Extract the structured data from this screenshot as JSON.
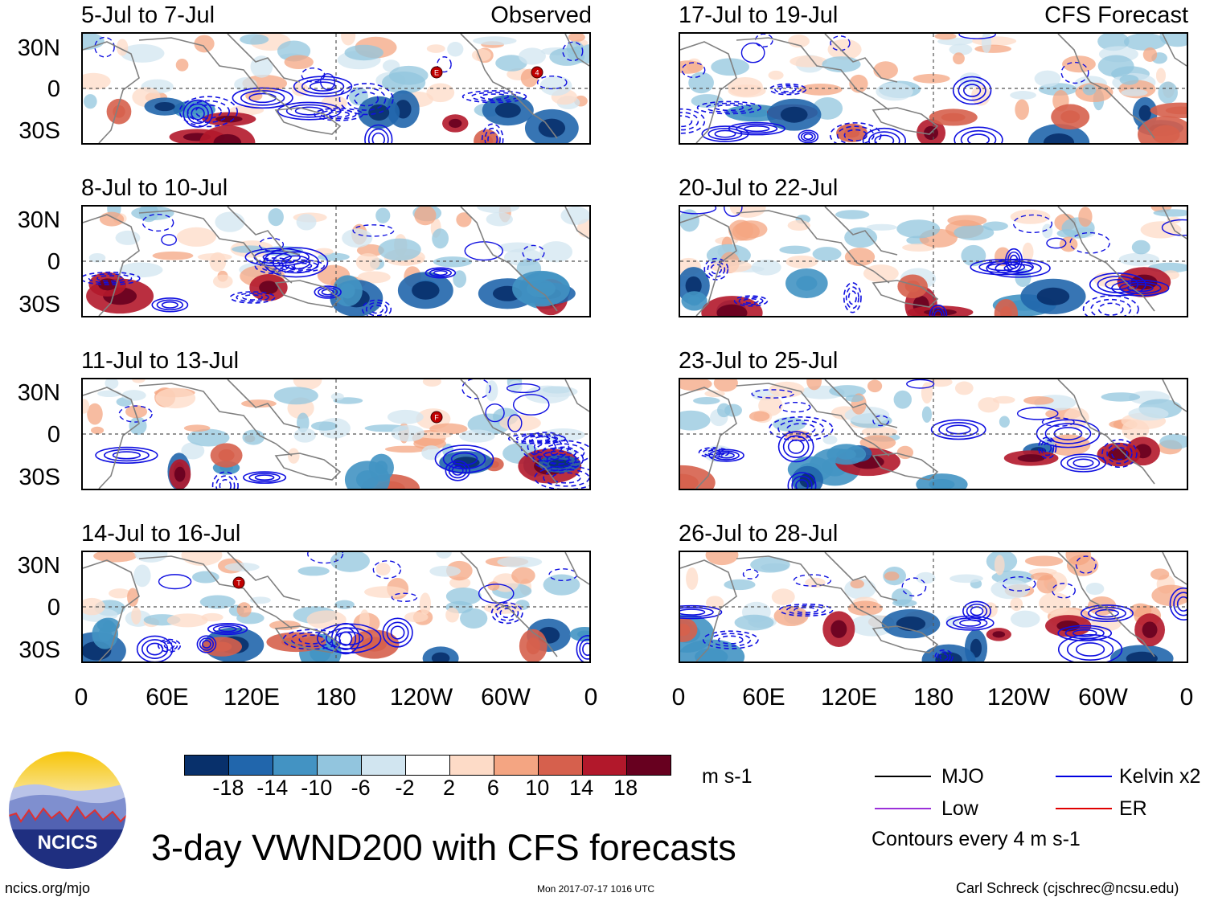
{
  "observed_label": "Observed",
  "forecast_label": "CFS Forecast",
  "panels_left": [
    {
      "title": "5-Jul to 7-Jul",
      "storms": [
        "E",
        "4"
      ]
    },
    {
      "title": "8-Jul to 10-Jul",
      "storms": []
    },
    {
      "title": "11-Jul to 13-Jul",
      "storms": [
        "F"
      ]
    },
    {
      "title": "14-Jul to 16-Jul",
      "storms": [
        "T"
      ]
    }
  ],
  "panels_right": [
    {
      "title": "17-Jul to 19-Jul"
    },
    {
      "title": "20-Jul to 22-Jul"
    },
    {
      "title": "23-Jul to 25-Jul"
    },
    {
      "title": "26-Jul to 28-Jul"
    }
  ],
  "lat_ticks": [
    "30N",
    "0",
    "30S"
  ],
  "lon_ticks": [
    "0",
    "60E",
    "120E",
    "180",
    "120W",
    "60W",
    "0"
  ],
  "colorbar": {
    "colors": [
      "#08306b",
      "#2166ac",
      "#4393c3",
      "#92c5de",
      "#d1e5f0",
      "#ffffff",
      "#fddbc7",
      "#f4a582",
      "#d6604d",
      "#b2182b",
      "#67001f"
    ],
    "labels": [
      "-18",
      "-14",
      "-10",
      "-6",
      "-2",
      "2",
      "6",
      "10",
      "14",
      "18"
    ],
    "units": "m s-1"
  },
  "legend": [
    {
      "label": "MJO",
      "color": "#000000"
    },
    {
      "label": "Kelvin x2",
      "color": "#0000e0"
    },
    {
      "label": "Low",
      "color": "#9b30d9"
    },
    {
      "label": "ER",
      "color": "#e00000"
    }
  ],
  "contour_note": "Contours every 4 m s-1",
  "title": "3-day VWND200 with CFS forecasts",
  "logo_text": "NCICS",
  "footer": {
    "url": "ncics.org/mjo",
    "timestamp": "Mon 2017-07-17 1016 UTC",
    "author": "Carl Schreck (cjschrec@ncsu.edu)"
  }
}
